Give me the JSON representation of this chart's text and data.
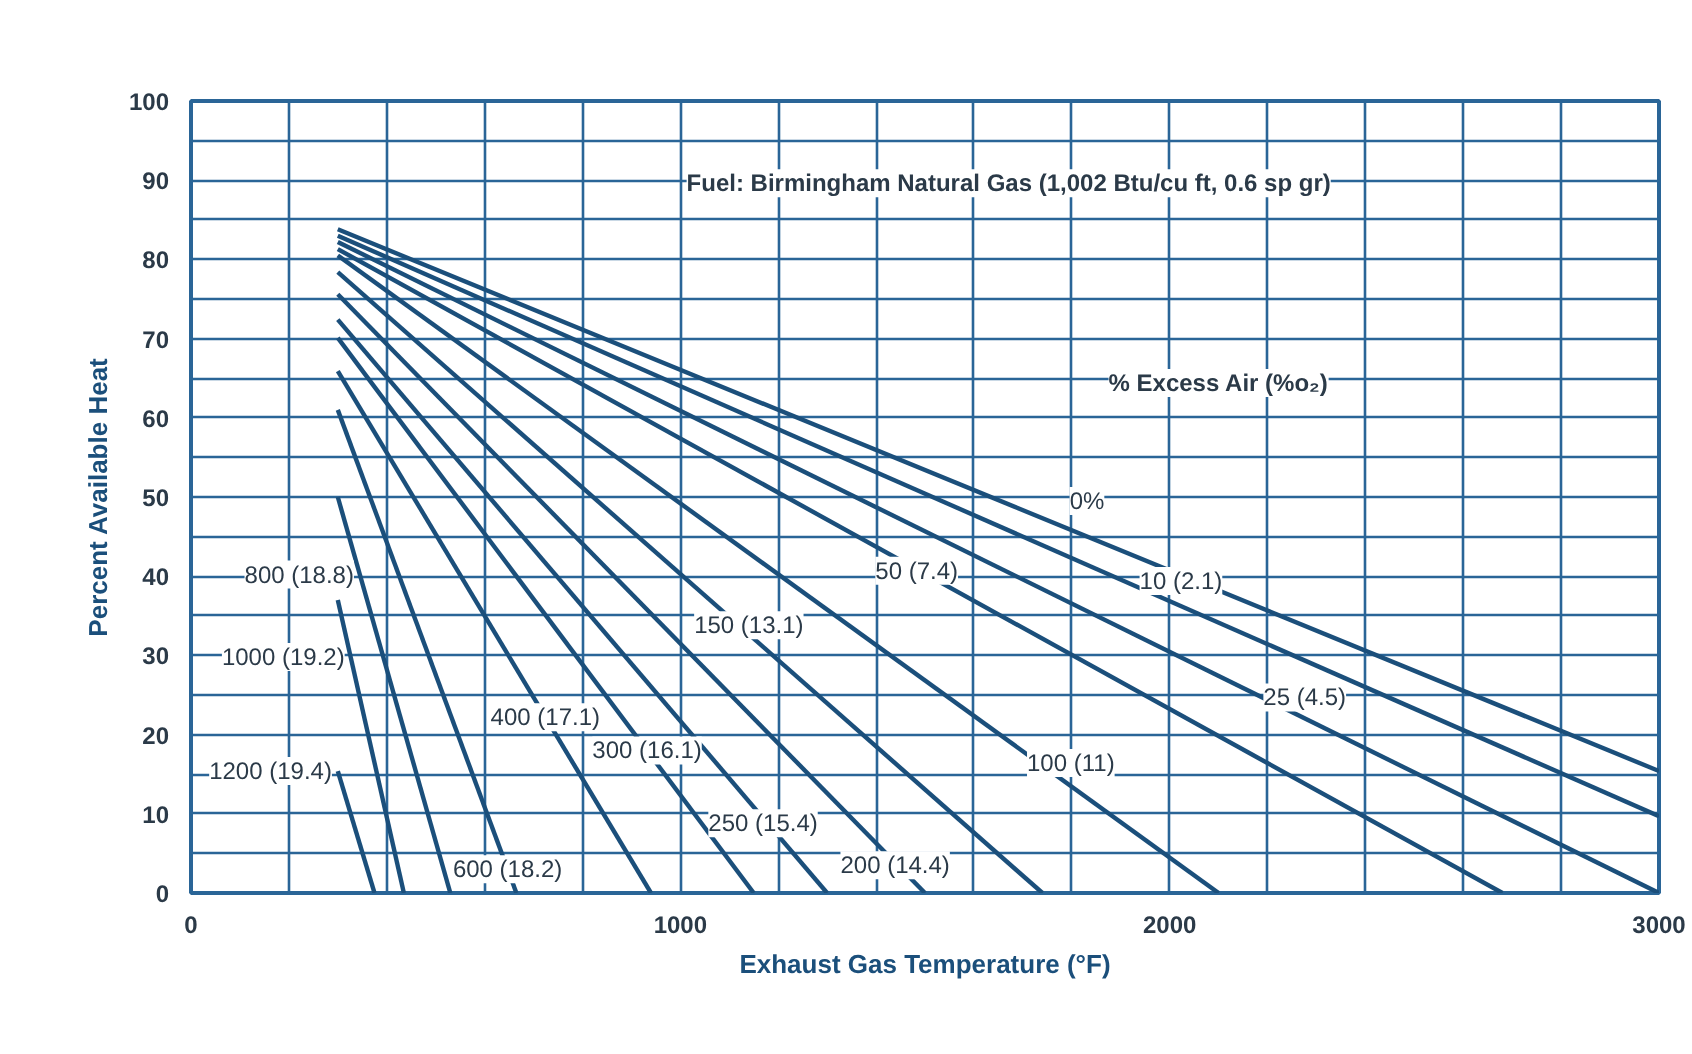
{
  "chart_data": {
    "type": "line",
    "xlabel": "Exhaust Gas Temperature (°F)",
    "ylabel": "Percent Available Heat",
    "xlim": [
      0,
      3000
    ],
    "ylim": [
      0,
      100
    ],
    "xticks": [
      0,
      {
        "value": 200,
        "label": null
      },
      {
        "value": 400,
        "label": null
      },
      {
        "value": 600,
        "label": null
      },
      {
        "value": 800,
        "label": null
      },
      1000,
      {
        "value": 1200,
        "label": null
      },
      {
        "value": 1400,
        "label": null
      },
      {
        "value": 1600,
        "label": null
      },
      {
        "value": 1800,
        "label": null
      },
      2000,
      {
        "value": 2200,
        "label": null
      },
      {
        "value": 2400,
        "label": null
      },
      {
        "value": 2600,
        "label": null
      },
      {
        "value": 2800,
        "label": null
      },
      3000
    ],
    "yticks": [
      0,
      {
        "value": 5,
        "label": null
      },
      10,
      {
        "value": 15,
        "label": null
      },
      20,
      {
        "value": 25,
        "label": null
      },
      30,
      {
        "value": 35,
        "label": null
      },
      40,
      {
        "value": 45,
        "label": null
      },
      50,
      {
        "value": 55,
        "label": null
      },
      60,
      {
        "value": 65,
        "label": null
      },
      70,
      {
        "value": 75,
        "label": null
      },
      80,
      {
        "value": 85,
        "label": null
      },
      90,
      {
        "value": 95,
        "label": null
      },
      100
    ],
    "subtitle": "Fuel: Birmingham Natural Gas (1,002 Btu/cu ft, 0.6 sp gr)",
    "legend_title": "% Excess Air (%o₂)",
    "grid": true,
    "marker": "none",
    "line_style": "solid",
    "series": [
      {
        "color": "#1b4f7b",
        "x": [
          300,
          3000
        ],
        "values": [
          83.8,
          15.4
        ]
      },
      {
        "color": "#1b4f7b",
        "x": [
          300,
          3000
        ],
        "values": [
          83.0,
          9.7
        ]
      },
      {
        "color": "#1b4f7b",
        "x": [
          300,
          3000
        ],
        "values": [
          82.2,
          0
        ]
      },
      {
        "color": "#1b4f7b",
        "x": [
          300,
          2680
        ],
        "values": [
          81.3,
          0
        ]
      },
      {
        "color": "#1b4f7b",
        "x": [
          300,
          2100
        ],
        "values": [
          80.5,
          0
        ]
      },
      {
        "color": "#1b4f7b",
        "x": [
          300,
          1740
        ],
        "values": [
          78.4,
          0
        ]
      },
      {
        "color": "#1b4f7b",
        "x": [
          300,
          1500
        ],
        "values": [
          75.6,
          0
        ]
      },
      {
        "color": "#1b4f7b",
        "x": [
          300,
          1300
        ],
        "values": [
          72.4,
          0
        ]
      },
      {
        "color": "#1b4f7b",
        "x": [
          300,
          1150
        ],
        "values": [
          70.1,
          0
        ]
      },
      {
        "color": "#1b4f7b",
        "x": [
          300,
          940
        ],
        "values": [
          65.9,
          0
        ]
      },
      {
        "color": "#1b4f7b",
        "x": [
          300,
          665
        ],
        "values": [
          61.0,
          0
        ]
      },
      {
        "color": "#1b4f7b",
        "x": [
          300,
          530
        ],
        "values": [
          50.0,
          0
        ]
      },
      {
        "color": "#1b4f7b",
        "x": [
          300,
          435
        ],
        "values": [
          37.0,
          0
        ]
      },
      {
        "color": "#1b4f7b",
        "x": [
          300,
          375
        ],
        "values": [
          15.4,
          0
        ]
      }
    ],
    "annotations": [
      {
        "text": "0%",
        "x": 1831,
        "y": 49.5
      },
      {
        "text": "10 (2.1)",
        "x": 2023,
        "y": 39.4
      },
      {
        "text": "25 (4.5)",
        "x": 2276,
        "y": 24.7
      },
      {
        "text": "50 (7.4)",
        "x": 1483,
        "y": 40.7
      },
      {
        "text": "100 (11)",
        "x": 1798,
        "y": 16.4
      },
      {
        "text": "150 (13.1)",
        "x": 1140,
        "y": 33.8
      },
      {
        "text": "200 (14.4)",
        "x": 1439,
        "y": 3.5
      },
      {
        "text": "250 (15.4)",
        "x": 1169,
        "y": 8.8
      },
      {
        "text": "300 (16.1)",
        "x": 932,
        "y": 18
      },
      {
        "text": "400 (17.1)",
        "x": 724,
        "y": 22.2
      },
      {
        "text": "600 (18.2)",
        "x": 647,
        "y": 3
      },
      {
        "text": "800 (18.8)",
        "x": 345,
        "y": 40.2
      },
      {
        "text": "1000 (19.2)",
        "x": 326,
        "y": 29.8
      },
      {
        "text": "1200 (19.4)",
        "x": 300,
        "y": 15.4
      }
    ]
  }
}
